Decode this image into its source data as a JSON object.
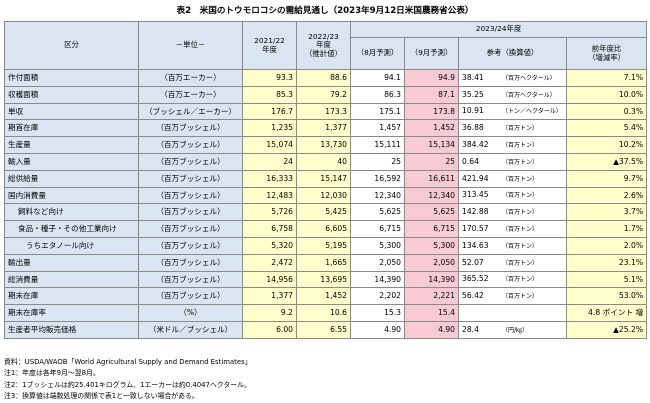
{
  "title": "表2　米国のトウモロコシの需給見通し（2023年9月12日米国農務省公表）",
  "header": {
    "category": "区分",
    "unit": "－単位－",
    "y2021": "2021/22\n年度",
    "y2022": "2022/23\n年度\n（推計値）",
    "y2023": "2023/24年度",
    "aug": "（8月予測）",
    "sep": "（9月予測）",
    "conv": "参考（換算値）",
    "chg": "前年度比\n（増減率）"
  },
  "rows": [
    {
      "item": "作付面積",
      "unit": "（百万エーカー）",
      "y21": "93.3",
      "y22": "88.6",
      "aug": "94.1",
      "sep": "94.9",
      "conv": "38.41",
      "convu": "（百万ヘクタール）",
      "chg": "7.1%"
    },
    {
      "item": "収穫面積",
      "unit": "（百万エーカー）",
      "y21": "85.3",
      "y22": "79.2",
      "aug": "86.3",
      "sep": "87.1",
      "conv": "35.25",
      "convu": "（百万ヘクタール）",
      "chg": "10.0%"
    },
    {
      "item": "単収",
      "unit": "（ブッシェル／エーカー）",
      "y21": "176.7",
      "y22": "173.3",
      "aug": "175.1",
      "sep": "173.8",
      "conv": "10.91",
      "convu": "（トン／ヘクタール）",
      "chg": "0.3%"
    },
    {
      "item": "期首在庫",
      "unit": "（百万ブッシェル）",
      "y21": "1,235",
      "y22": "1,377",
      "aug": "1,457",
      "sep": "1,452",
      "conv": "36.88",
      "convu": "（百万トン）",
      "chg": "5.4%"
    },
    {
      "item": "生産量",
      "unit": "（百万ブッシェル）",
      "y21": "15,074",
      "y22": "13,730",
      "aug": "15,111",
      "sep": "15,134",
      "conv": "384.42",
      "convu": "（百万トン）",
      "chg": "10.2%"
    },
    {
      "item": "輸入量",
      "unit": "（百万ブッシェル）",
      "y21": "24",
      "y22": "40",
      "aug": "25",
      "sep": "25",
      "conv": "0.64",
      "convu": "（百万トン）",
      "chg": "▲37.5%"
    },
    {
      "item": "総供給量",
      "unit": "（百万ブッシェル）",
      "y21": "16,333",
      "y22": "15,147",
      "aug": "16,592",
      "sep": "16,611",
      "conv": "421.94",
      "convu": "（百万トン）",
      "chg": "9.7%"
    },
    {
      "item": "国内消費量",
      "unit": "（百万ブッシェル）",
      "y21": "12,483",
      "y22": "12,030",
      "aug": "12,340",
      "sep": "12,340",
      "conv": "313.45",
      "convu": "（百万トン）",
      "chg": "2.6%"
    },
    {
      "item": "飼料など向け",
      "indent": 1,
      "unit": "（百万ブッシェル）",
      "y21": "5,726",
      "y22": "5,425",
      "aug": "5,625",
      "sep": "5,625",
      "conv": "142.88",
      "convu": "（百万トン）",
      "chg": "3.7%"
    },
    {
      "item": "食品・種子・その他工業向け",
      "indent": 1,
      "unit": "（百万ブッシェル）",
      "y21": "6,758",
      "y22": "6,605",
      "aug": "6,715",
      "sep": "6,715",
      "conv": "170.57",
      "convu": "（百万トン）",
      "chg": "1.7%"
    },
    {
      "item": "うちエタノール向け",
      "indent": 2,
      "unit": "（百万ブッシェル）",
      "y21": "5,320",
      "y22": "5,195",
      "aug": "5,300",
      "sep": "5,300",
      "conv": "134.63",
      "convu": "（百万トン）",
      "chg": "2.0%"
    },
    {
      "item": "輸出量",
      "unit": "（百万ブッシェル）",
      "y21": "2,472",
      "y22": "1,665",
      "aug": "2,050",
      "sep": "2,050",
      "conv": "52.07",
      "convu": "（百万トン）",
      "chg": "23.1%"
    },
    {
      "item": "総消費量",
      "unit": "（百万ブッシェル）",
      "y21": "14,956",
      "y22": "13,695",
      "aug": "14,390",
      "sep": "14,390",
      "conv": "365.52",
      "convu": "（百万トン）",
      "chg": "5.1%"
    },
    {
      "item": "期末在庫",
      "unit": "（百万ブッシェル）",
      "y21": "1,377",
      "y22": "1,452",
      "aug": "2,202",
      "sep": "2,221",
      "conv": "56.42",
      "convu": "（百万トン）",
      "chg": "53.0%"
    },
    {
      "item": "期末在庫率",
      "unit": "（%）",
      "y21": "9.2",
      "y22": "10.6",
      "aug": "15.3",
      "sep": "15.4",
      "conv": "",
      "convu": "",
      "chg": "4.8 ポイント 増"
    },
    {
      "item": "生産者平均販売価格",
      "unit": "（米ドル／ブッシェル）",
      "y21": "6.00",
      "y22": "6.55",
      "aug": "4.90",
      "sep": "4.90",
      "conv": "28.4",
      "convu": "（円/㎏）",
      "chg": "▲25.2%"
    }
  ],
  "notes": [
    "資料：USDA/WAOB「World Agricultural Supply and Demand Estimates」",
    "注1：年度は各年9月～翌8月。",
    "注2：1ブッシェルは約25.401キログラム、1エーカーは約0.4047ヘクタール。",
    "注3：換算値は端数処理の関係で表1と一致しない場合がある。"
  ]
}
